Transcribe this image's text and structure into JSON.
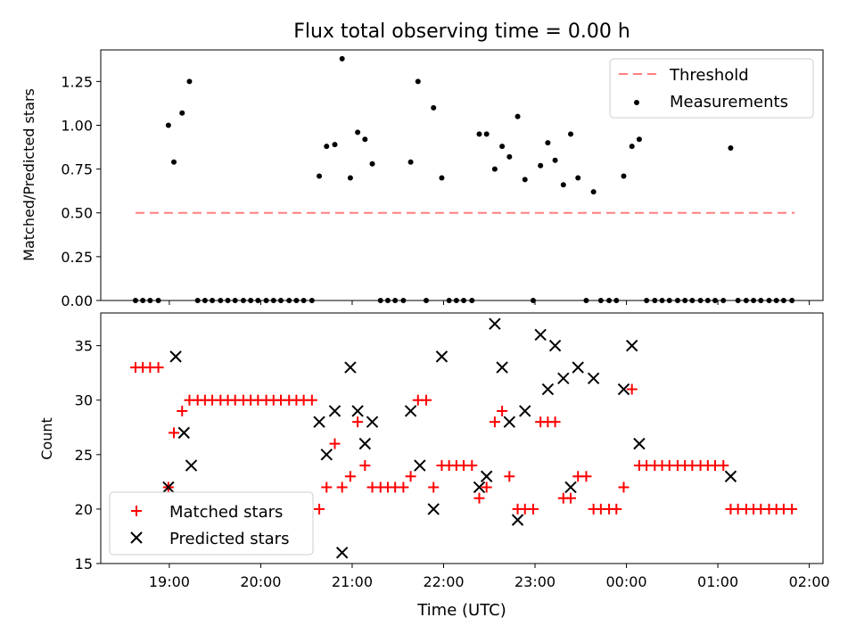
{
  "title": "Flux total observing time = 0.00 h",
  "xlabel": "Time (UTC)",
  "x_ticks": [
    "19:00",
    "20:00",
    "21:00",
    "22:00",
    "23:00",
    "00:00",
    "01:00",
    "02:00"
  ],
  "colors": {
    "threshold": "#ff7f7f",
    "measurement": "#000000",
    "matched": "#ff0000",
    "predicted": "#000000"
  },
  "chart_data": [
    {
      "type": "scatter",
      "ylabel": "Matched/Predicted stars",
      "ylim": [
        0,
        1.43
      ],
      "y_ticks": [
        "0.00",
        "0.25",
        "0.50",
        "0.75",
        "1.00",
        "1.25"
      ],
      "legend": {
        "placement": "upper right",
        "entries": [
          "Threshold",
          "Measurements"
        ]
      },
      "threshold": {
        "name": "Threshold",
        "value": 0.5,
        "x_range": [
          "18:38",
          "23:59+01:51"
        ],
        "x_range_h": [
          18.63,
          25.84
        ]
      },
      "series": [
        {
          "name": "Measurements",
          "points": [
            [
              18.63,
              0
            ],
            [
              18.71,
              0
            ],
            [
              18.79,
              0
            ],
            [
              18.88,
              0
            ],
            [
              18.99,
              1.0
            ],
            [
              19.05,
              0.79
            ],
            [
              19.14,
              1.07
            ],
            [
              19.22,
              1.25
            ],
            [
              19.31,
              0
            ],
            [
              19.39,
              0
            ],
            [
              19.47,
              0
            ],
            [
              19.56,
              0
            ],
            [
              19.64,
              0
            ],
            [
              19.72,
              0
            ],
            [
              19.81,
              0
            ],
            [
              19.89,
              0
            ],
            [
              19.97,
              0
            ],
            [
              20.06,
              0
            ],
            [
              20.14,
              0
            ],
            [
              20.22,
              0
            ],
            [
              20.31,
              0
            ],
            [
              20.39,
              0
            ],
            [
              20.47,
              0
            ],
            [
              20.56,
              0
            ],
            [
              20.64,
              0.71
            ],
            [
              20.72,
              0.88
            ],
            [
              20.81,
              0.89
            ],
            [
              20.89,
              1.38
            ],
            [
              20.98,
              0.7
            ],
            [
              21.06,
              0.96
            ],
            [
              21.14,
              0.92
            ],
            [
              21.22,
              0.78
            ],
            [
              21.31,
              0
            ],
            [
              21.39,
              0
            ],
            [
              21.47,
              0
            ],
            [
              21.56,
              0
            ],
            [
              21.64,
              0.79
            ],
            [
              21.72,
              1.25
            ],
            [
              21.81,
              0
            ],
            [
              21.89,
              1.1
            ],
            [
              21.98,
              0.7
            ],
            [
              22.06,
              0
            ],
            [
              22.14,
              0
            ],
            [
              22.22,
              0
            ],
            [
              22.31,
              0
            ],
            [
              22.39,
              0.95
            ],
            [
              22.47,
              0.95
            ],
            [
              22.56,
              0.75
            ],
            [
              22.64,
              0.88
            ],
            [
              22.72,
              0.82
            ],
            [
              22.81,
              1.05
            ],
            [
              22.89,
              0.69
            ],
            [
              22.98,
              0
            ],
            [
              23.06,
              0.77
            ],
            [
              23.14,
              0.9
            ],
            [
              23.22,
              0.8
            ],
            [
              23.31,
              0.66
            ],
            [
              23.39,
              0.95
            ],
            [
              23.47,
              0.7
            ],
            [
              23.56,
              0
            ],
            [
              23.64,
              0.62
            ],
            [
              23.72,
              0
            ],
            [
              23.81,
              0
            ],
            [
              23.89,
              0
            ],
            [
              23.97,
              0.71
            ],
            [
              24.06,
              0.88
            ],
            [
              24.14,
              0.92
            ],
            [
              24.22,
              0
            ],
            [
              24.31,
              0
            ],
            [
              24.39,
              0
            ],
            [
              24.47,
              0
            ],
            [
              24.56,
              0
            ],
            [
              24.64,
              0
            ],
            [
              24.72,
              0
            ],
            [
              24.81,
              0
            ],
            [
              24.89,
              0
            ],
            [
              24.97,
              0
            ],
            [
              25.06,
              0
            ],
            [
              25.14,
              0.87
            ],
            [
              25.22,
              0
            ],
            [
              25.31,
              0
            ],
            [
              25.39,
              0
            ],
            [
              25.47,
              0
            ],
            [
              25.56,
              0
            ],
            [
              25.64,
              0
            ],
            [
              25.72,
              0
            ],
            [
              25.81,
              0
            ]
          ]
        }
      ]
    },
    {
      "type": "scatter",
      "ylabel": "Count",
      "ylim": [
        15,
        38
      ],
      "y_ticks": [
        "15",
        "20",
        "25",
        "30",
        "35"
      ],
      "legend": {
        "placement": "lower left",
        "entries": [
          "Matched stars",
          "Predicted stars"
        ]
      },
      "series": [
        {
          "name": "Matched stars",
          "points": [
            [
              18.63,
              33
            ],
            [
              18.71,
              33
            ],
            [
              18.79,
              33
            ],
            [
              18.88,
              33
            ],
            [
              18.99,
              22
            ],
            [
              19.05,
              27
            ],
            [
              19.14,
              29
            ],
            [
              19.22,
              30
            ],
            [
              19.31,
              30
            ],
            [
              19.39,
              30
            ],
            [
              19.47,
              30
            ],
            [
              19.56,
              30
            ],
            [
              19.64,
              30
            ],
            [
              19.72,
              30
            ],
            [
              19.81,
              30
            ],
            [
              19.89,
              30
            ],
            [
              19.97,
              30
            ],
            [
              20.06,
              30
            ],
            [
              20.14,
              30
            ],
            [
              20.22,
              30
            ],
            [
              20.31,
              30
            ],
            [
              20.39,
              30
            ],
            [
              20.47,
              30
            ],
            [
              20.56,
              30
            ],
            [
              20.64,
              20
            ],
            [
              20.72,
              22
            ],
            [
              20.81,
              26
            ],
            [
              20.89,
              22
            ],
            [
              20.98,
              23
            ],
            [
              21.06,
              28
            ],
            [
              21.14,
              24
            ],
            [
              21.22,
              22
            ],
            [
              21.31,
              22
            ],
            [
              21.39,
              22
            ],
            [
              21.47,
              22
            ],
            [
              21.56,
              22
            ],
            [
              21.64,
              23
            ],
            [
              21.72,
              30
            ],
            [
              21.81,
              30
            ],
            [
              21.89,
              22
            ],
            [
              21.98,
              24
            ],
            [
              22.06,
              24
            ],
            [
              22.14,
              24
            ],
            [
              22.22,
              24
            ],
            [
              22.31,
              24
            ],
            [
              22.39,
              21
            ],
            [
              22.47,
              22
            ],
            [
              22.56,
              28
            ],
            [
              22.64,
              29
            ],
            [
              22.72,
              23
            ],
            [
              22.81,
              20
            ],
            [
              22.89,
              20
            ],
            [
              22.98,
              20
            ],
            [
              23.06,
              28
            ],
            [
              23.14,
              28
            ],
            [
              23.22,
              28
            ],
            [
              23.31,
              21
            ],
            [
              23.39,
              21
            ],
            [
              23.47,
              23
            ],
            [
              23.56,
              23
            ],
            [
              23.64,
              20
            ],
            [
              23.72,
              20
            ],
            [
              23.81,
              20
            ],
            [
              23.89,
              20
            ],
            [
              23.97,
              22
            ],
            [
              24.06,
              31
            ],
            [
              24.14,
              24
            ],
            [
              24.22,
              24
            ],
            [
              24.31,
              24
            ],
            [
              24.39,
              24
            ],
            [
              24.47,
              24
            ],
            [
              24.56,
              24
            ],
            [
              24.64,
              24
            ],
            [
              24.72,
              24
            ],
            [
              24.81,
              24
            ],
            [
              24.89,
              24
            ],
            [
              24.97,
              24
            ],
            [
              25.06,
              24
            ],
            [
              25.14,
              20
            ],
            [
              25.22,
              20
            ],
            [
              25.31,
              20
            ],
            [
              25.39,
              20
            ],
            [
              25.47,
              20
            ],
            [
              25.56,
              20
            ],
            [
              25.64,
              20
            ],
            [
              25.72,
              20
            ],
            [
              25.81,
              20
            ]
          ]
        },
        {
          "name": "Predicted stars",
          "points": [
            [
              18.99,
              22
            ],
            [
              19.07,
              34
            ],
            [
              19.16,
              27
            ],
            [
              19.24,
              24
            ],
            [
              20.64,
              28
            ],
            [
              20.72,
              25
            ],
            [
              20.81,
              29
            ],
            [
              20.89,
              16
            ],
            [
              20.98,
              33
            ],
            [
              21.06,
              29
            ],
            [
              21.14,
              26
            ],
            [
              21.22,
              28
            ],
            [
              21.64,
              29
            ],
            [
              21.74,
              24
            ],
            [
              21.89,
              20
            ],
            [
              21.98,
              34
            ],
            [
              22.39,
              22
            ],
            [
              22.47,
              23
            ],
            [
              22.56,
              37
            ],
            [
              22.64,
              33
            ],
            [
              22.72,
              28
            ],
            [
              22.81,
              19
            ],
            [
              22.89,
              29
            ],
            [
              23.06,
              36
            ],
            [
              23.14,
              31
            ],
            [
              23.22,
              35
            ],
            [
              23.31,
              32
            ],
            [
              23.39,
              22
            ],
            [
              23.47,
              33
            ],
            [
              23.64,
              32
            ],
            [
              23.97,
              31
            ],
            [
              24.06,
              35
            ],
            [
              24.14,
              26
            ],
            [
              25.14,
              23
            ]
          ]
        }
      ]
    }
  ]
}
